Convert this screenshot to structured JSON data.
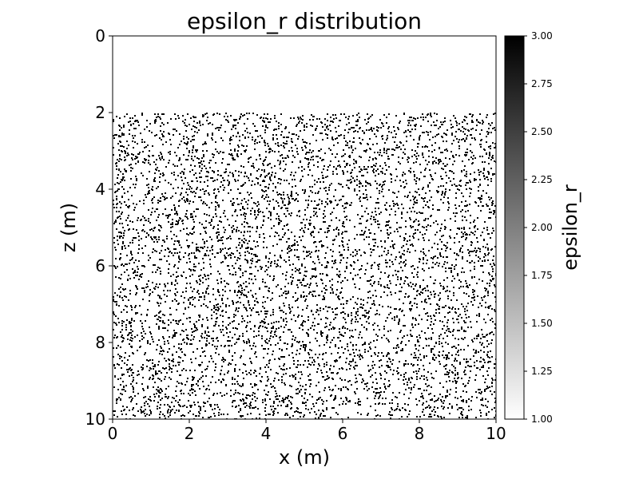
{
  "chart_data": {
    "type": "heatmap",
    "title": "epsilon_r distribution",
    "xlabel": "x (m)",
    "ylabel": "z (m)",
    "xlim": [
      0,
      10
    ],
    "ylim": [
      10,
      0
    ],
    "y_inverted": true,
    "x_ticks": [
      "0",
      "2",
      "4",
      "6",
      "8",
      "10"
    ],
    "y_ticks": [
      "0",
      "2",
      "4",
      "6",
      "8",
      "10"
    ],
    "grid": false,
    "background_value": 1.0,
    "inclusion_value": 3.0,
    "inclusion_region": {
      "x": [
        0,
        10
      ],
      "z": [
        2,
        10
      ]
    },
    "inclusion_pattern": "random scattered point inclusions, roughly uniform density",
    "colorbar": {
      "label": "epsilon_r",
      "range": [
        1.0,
        3.0
      ],
      "colormap": "gray_r",
      "ticks": [
        "1.00",
        "1.25",
        "1.50",
        "1.75",
        "2.00",
        "2.25",
        "2.50",
        "2.75",
        "3.00"
      ],
      "low_color": "#ffffff",
      "high_color": "#000000"
    }
  }
}
